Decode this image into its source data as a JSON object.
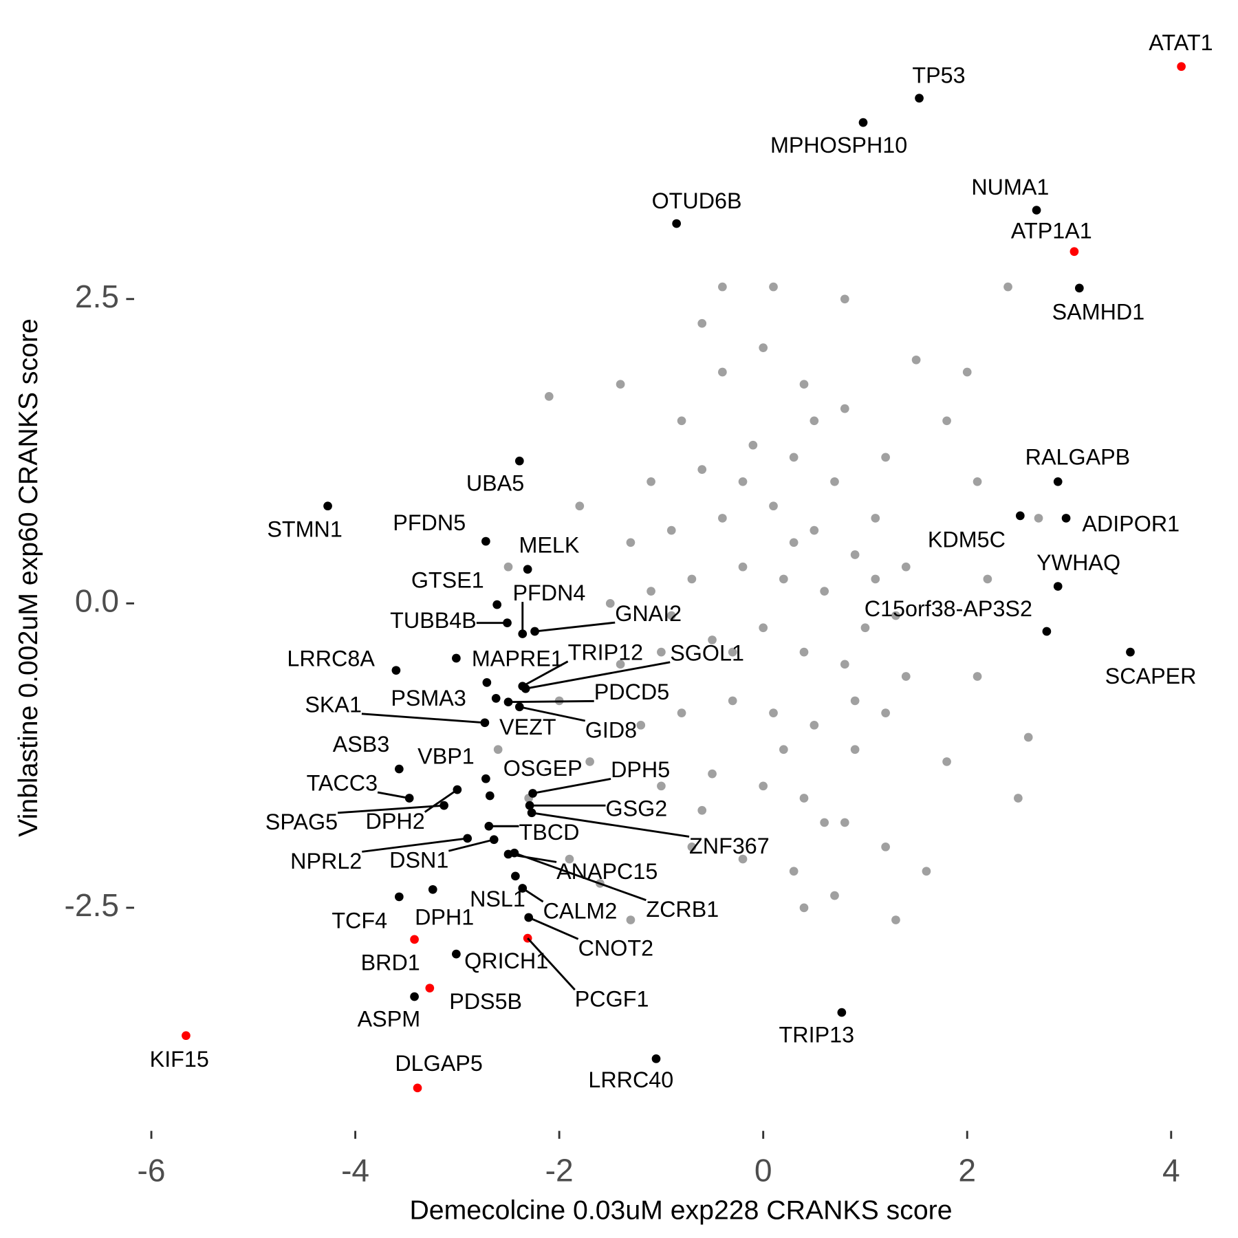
{
  "chart_data": {
    "type": "scatter",
    "x_label": "Demecolcine 0.03uM exp228 CRANKS score",
    "y_label": "Vinblastine 0.002uM exp60 CRANKS score",
    "xlim": [
      -6.2,
      4.5
    ],
    "ylim": [
      -4.3,
      4.5
    ],
    "xticks": [
      -6,
      -4,
      -2,
      0,
      2,
      4
    ],
    "yticks": [
      2.5,
      {
        "value": 0,
        "label": "0.0"
      },
      -2.5
    ],
    "grid": false,
    "series": [
      {
        "color": "#a0a0a0",
        "x": [
          -0.8,
          -0.4,
          0.0,
          0.4,
          0.8,
          1.2,
          -1.1,
          -0.6,
          -0.1,
          0.3,
          0.7,
          1.1,
          1.4,
          -1.3,
          -0.9,
          -0.4,
          0.1,
          0.5,
          0.9,
          1.3,
          -1.5,
          -1.1,
          -0.7,
          -0.2,
          0.2,
          0.6,
          1.0,
          1.4,
          -1.4,
          -1.0,
          -0.5,
          0.0,
          0.4,
          0.8,
          1.2,
          -1.2,
          -0.8,
          -0.3,
          0.1,
          0.5,
          0.9,
          -1.0,
          -0.5,
          0.0,
          0.4,
          0.8,
          -0.7,
          -0.2,
          0.3,
          1.2,
          -1.7,
          -2.0,
          -1.8,
          -2.1,
          -1.4,
          -0.6,
          0.1,
          0.8,
          1.5,
          2.0,
          2.1,
          2.2,
          2.1,
          1.8,
          1.6,
          2.6,
          2.4,
          -1.3,
          0.4,
          0.7,
          -2.3,
          -2.6,
          -2.5,
          2.5,
          1.3,
          -0.4,
          -1.6,
          -1.9,
          2.7,
          1.8,
          0.2,
          -0.2,
          0.5,
          0.9,
          -0.9,
          0.6,
          1.1,
          -0.6,
          0.3,
          -0.3
        ],
        "y": [
          1.5,
          1.9,
          2.1,
          1.8,
          1.6,
          1.2,
          1.0,
          1.1,
          1.3,
          1.2,
          1.0,
          0.7,
          0.3,
          0.5,
          0.6,
          0.7,
          0.8,
          0.6,
          0.4,
          -0.1,
          0.0,
          0.1,
          0.2,
          0.3,
          0.2,
          0.1,
          -0.2,
          -0.6,
          -0.5,
          -0.4,
          -0.3,
          -0.2,
          -0.4,
          -0.5,
          -0.9,
          -1.0,
          -0.9,
          -0.8,
          -0.9,
          -1.0,
          -1.2,
          -1.5,
          -1.4,
          -1.5,
          -1.6,
          -1.8,
          -2.0,
          -2.1,
          -2.2,
          -2.0,
          -1.3,
          -0.8,
          0.8,
          1.7,
          1.8,
          2.3,
          2.6,
          2.5,
          2.0,
          1.9,
          1.0,
          0.2,
          -0.6,
          -1.3,
          -2.2,
          -1.1,
          2.6,
          -2.6,
          -2.5,
          -2.4,
          -1.6,
          -1.2,
          0.3,
          -1.6,
          -2.6,
          2.6,
          -2.3,
          -2.1,
          0.7,
          1.5,
          -1.2,
          1.0,
          1.5,
          -0.8,
          -0.1,
          -1.8,
          0.2,
          -1.7,
          0.5,
          -0.4
        ]
      },
      {
        "x": [
          4.1,
          1.53,
          0.98,
          -0.85,
          2.68,
          3.05,
          3.1,
          2.89,
          2.97,
          2.52,
          2.89,
          2.78,
          3.6,
          0.77,
          -1.05,
          -2.39,
          -4.27,
          -2.72,
          -2.31,
          -2.61,
          -2.36,
          -2.24,
          -2.51,
          -3.6,
          -3.01,
          -2.36,
          -2.33,
          -2.71,
          -2.5,
          -2.73,
          -2.62,
          -2.39,
          -3.57,
          -2.72,
          -3.47,
          -2.68,
          -2.26,
          -2.29,
          -2.27,
          -3.13,
          -3.0,
          -2.69,
          -2.9,
          -2.64,
          -2.5,
          -2.44,
          -2.43,
          -2.36,
          -3.57,
          -3.24,
          -2.3,
          -3.42,
          -3.01,
          -2.31,
          -3.27,
          -3.42,
          -5.66,
          -3.39
        ],
        "y": [
          4.41,
          4.15,
          3.95,
          3.12,
          3.23,
          2.89,
          2.59,
          1.0,
          0.7,
          0.72,
          0.14,
          -0.23,
          -0.4,
          -3.36,
          -3.74,
          1.17,
          0.8,
          0.51,
          0.28,
          -0.01,
          -0.25,
          -0.23,
          -0.16,
          -0.55,
          -0.45,
          -0.68,
          -0.7,
          -0.65,
          -0.81,
          -0.98,
          -0.78,
          -0.85,
          -1.36,
          -1.44,
          -1.6,
          -1.58,
          -1.56,
          -1.66,
          -1.72,
          -1.66,
          -1.53,
          -1.83,
          -1.93,
          -1.94,
          -2.06,
          -2.05,
          -2.24,
          -2.34,
          -2.41,
          -2.35,
          -2.58,
          -2.76,
          -2.88,
          -2.75,
          -3.16,
          -3.23,
          -3.55,
          -3.98
        ],
        "labels": [
          "ATAT1",
          "TP53",
          "MPHOSPH10",
          "OTUD6B",
          "NUMA1",
          "ATP1A1",
          "SAMHD1",
          "RALGAPB",
          "ADIPOR1",
          "KDM5C",
          "YWHAQ",
          "C15orf38-AP3S2",
          "SCAPER",
          "TRIP13",
          "LRRC40",
          "UBA5",
          "STMN1",
          "PFDN5",
          "MELK",
          "GTSE1",
          "PFDN4",
          "GNAI2",
          "TUBB4B",
          "LRRC8A",
          "MAPRE1",
          "TRIP12",
          "SGOL1",
          "PSMA3",
          "PDCD5",
          "SKA1",
          "VEZT",
          "GID8",
          "ASB3",
          "VBP1",
          "TACC3",
          "OSGEP",
          "DPH5",
          "GSG2",
          "ZNF367",
          "SPAG5",
          "DPH2",
          "TBCD",
          "NPRL2",
          "DSN1",
          "ANAPC15",
          "ZCRB1",
          "NSL1",
          "CALM2",
          "TCF4",
          "DPH1",
          "CNOT2",
          "BRD1",
          "QRICH1",
          "PCGF1",
          "PDS5B",
          "ASPM",
          "KIF15",
          "DLGAP5"
        ],
        "colors": [
          "#ff0000",
          "#000000",
          "#000000",
          "#000000",
          "#000000",
          "#ff0000",
          "#000000",
          "#000000",
          "#000000",
          "#000000",
          "#000000",
          "#000000",
          "#000000",
          "#000000",
          "#000000",
          "#000000",
          "#000000",
          "#000000",
          "#000000",
          "#000000",
          "#000000",
          "#000000",
          "#000000",
          "#000000",
          "#000000",
          "#000000",
          "#000000",
          "#000000",
          "#000000",
          "#000000",
          "#000000",
          "#000000",
          "#000000",
          "#000000",
          "#000000",
          "#000000",
          "#000000",
          "#000000",
          "#000000",
          "#000000",
          "#000000",
          "#000000",
          "#000000",
          "#000000",
          "#000000",
          "#000000",
          "#000000",
          "#000000",
          "#000000",
          "#000000",
          "#000000",
          "#ff0000",
          "#000000",
          "#ff0000",
          "#ff0000",
          "#000000",
          "#ff0000",
          "#ff0000"
        ]
      }
    ]
  }
}
